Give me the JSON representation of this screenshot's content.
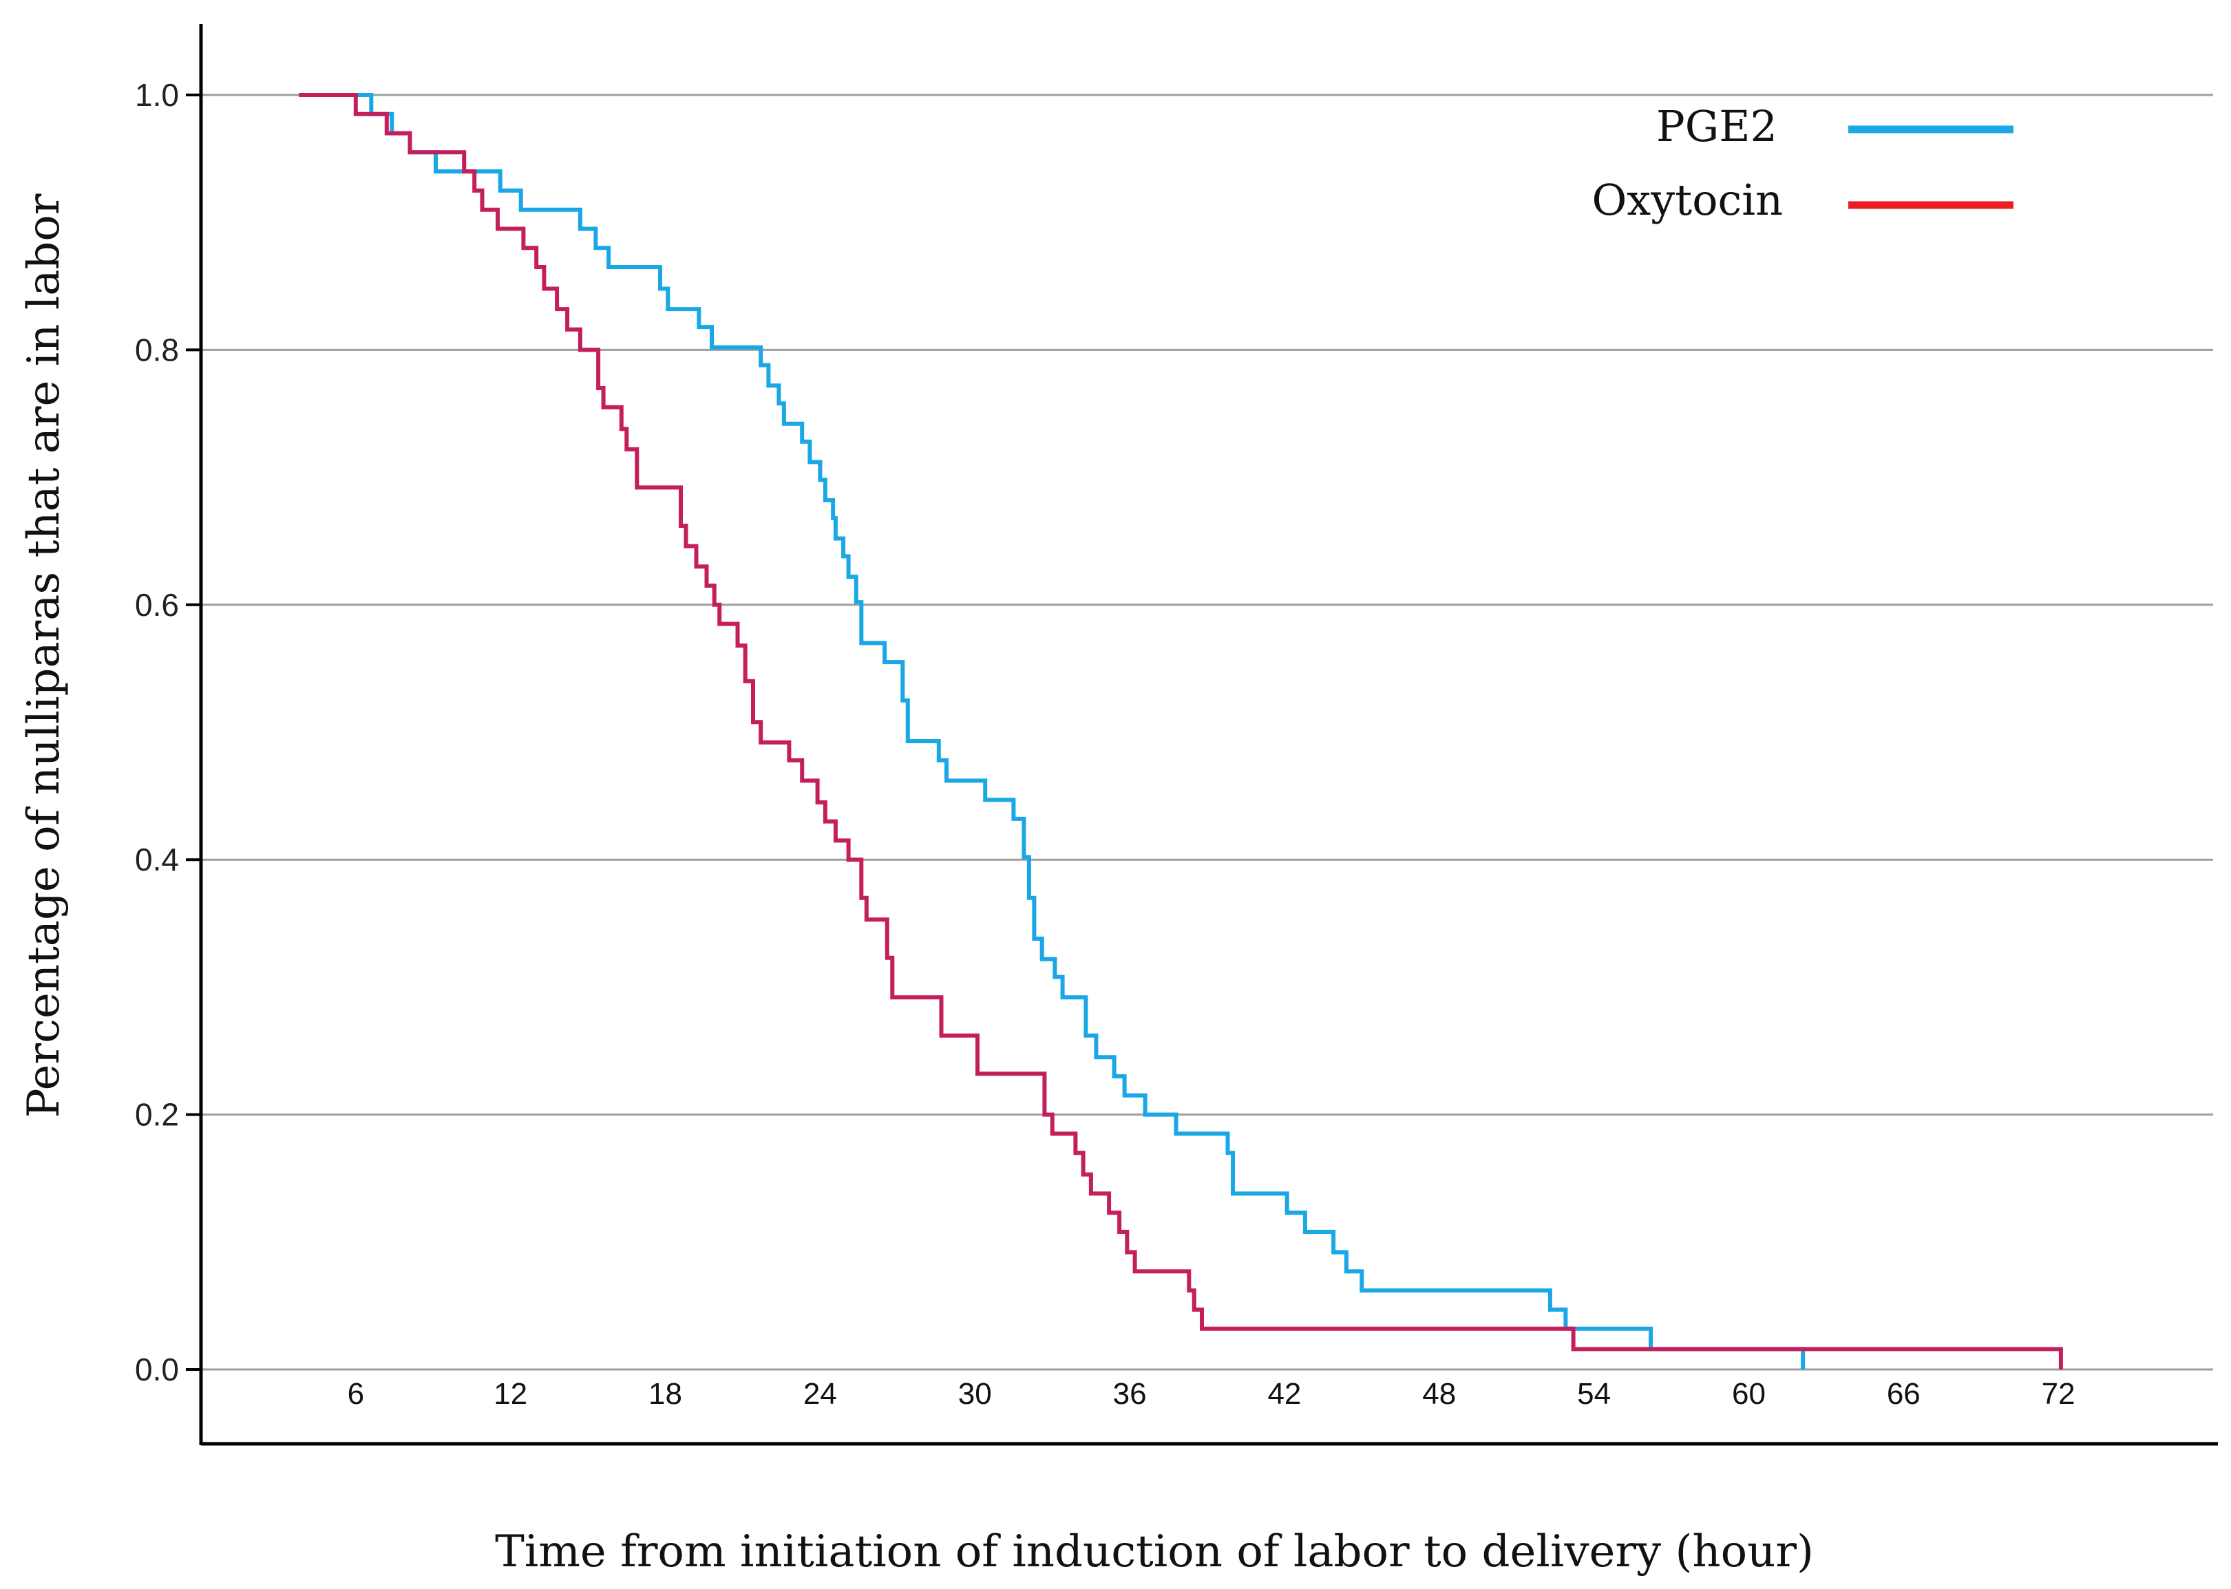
{
  "chart_data": {
    "type": "line",
    "subtype": "kaplan-meier-step",
    "title": "",
    "xlabel": "Time from initiation of induction of labor to delivery (hour)",
    "ylabel": "Percentage of nulliparas that are in labor",
    "xlim": [
      0,
      78
    ],
    "ylim": [
      0,
      1.0
    ],
    "grid": true,
    "legend_position": "top-right",
    "x_ticks": [
      {
        "label": "6",
        "value": 6
      },
      {
        "label": "12",
        "value": 12
      },
      {
        "label": "18",
        "value": 18
      },
      {
        "label": "24",
        "value": 24
      },
      {
        "label": "30",
        "value": 30
      },
      {
        "label": "36",
        "value": 36
      },
      {
        "label": "42",
        "value": 42
      },
      {
        "label": "48",
        "value": 48
      },
      {
        "label": "54",
        "value": 54
      },
      {
        "label": "60",
        "value": 60
      },
      {
        "label": "66",
        "value": 66
      },
      {
        "label": "72",
        "value": 72
      }
    ],
    "y_ticks": [
      {
        "label": "0.0",
        "value": 0.0
      },
      {
        "label": "0.2",
        "value": 0.2
      },
      {
        "label": "0.4",
        "value": 0.4
      },
      {
        "label": "0.6",
        "value": 0.6
      },
      {
        "label": "0.8",
        "value": 0.8
      },
      {
        "label": "1.0",
        "value": 1.0
      }
    ],
    "series": [
      {
        "name": "PGE2",
        "color": "#1aa7e6",
        "points": [
          [
            3.8,
            1.0
          ],
          [
            6.6,
            1.0
          ],
          [
            6.6,
            0.985
          ],
          [
            7.4,
            0.985
          ],
          [
            7.4,
            0.97
          ],
          [
            8.1,
            0.97
          ],
          [
            8.1,
            0.955
          ],
          [
            9.1,
            0.955
          ],
          [
            9.1,
            0.94
          ],
          [
            11.6,
            0.94
          ],
          [
            11.6,
            0.925
          ],
          [
            12.4,
            0.925
          ],
          [
            12.4,
            0.91
          ],
          [
            14.7,
            0.91
          ],
          [
            14.7,
            0.895
          ],
          [
            15.3,
            0.895
          ],
          [
            15.3,
            0.88
          ],
          [
            15.8,
            0.88
          ],
          [
            15.8,
            0.865
          ],
          [
            17.8,
            0.865
          ],
          [
            17.8,
            0.848
          ],
          [
            18.1,
            0.848
          ],
          [
            18.1,
            0.832
          ],
          [
            19.3,
            0.832
          ],
          [
            19.3,
            0.818
          ],
          [
            19.8,
            0.818
          ],
          [
            19.8,
            0.802
          ],
          [
            21.7,
            0.802
          ],
          [
            21.7,
            0.788
          ],
          [
            22.0,
            0.788
          ],
          [
            22.0,
            0.772
          ],
          [
            22.4,
            0.772
          ],
          [
            22.4,
            0.758
          ],
          [
            22.6,
            0.758
          ],
          [
            22.6,
            0.742
          ],
          [
            23.3,
            0.742
          ],
          [
            23.3,
            0.728
          ],
          [
            23.6,
            0.728
          ],
          [
            23.6,
            0.712
          ],
          [
            24.0,
            0.712
          ],
          [
            24.0,
            0.698
          ],
          [
            24.2,
            0.698
          ],
          [
            24.2,
            0.682
          ],
          [
            24.5,
            0.682
          ],
          [
            24.5,
            0.668
          ],
          [
            24.6,
            0.668
          ],
          [
            24.6,
            0.652
          ],
          [
            24.9,
            0.652
          ],
          [
            24.9,
            0.638
          ],
          [
            25.1,
            0.638
          ],
          [
            25.1,
            0.622
          ],
          [
            25.4,
            0.622
          ],
          [
            25.4,
            0.602
          ],
          [
            25.6,
            0.602
          ],
          [
            25.6,
            0.57
          ],
          [
            26.5,
            0.57
          ],
          [
            26.5,
            0.555
          ],
          [
            27.2,
            0.555
          ],
          [
            27.2,
            0.525
          ],
          [
            27.4,
            0.525
          ],
          [
            27.4,
            0.493
          ],
          [
            28.6,
            0.493
          ],
          [
            28.6,
            0.478
          ],
          [
            28.9,
            0.478
          ],
          [
            28.9,
            0.462
          ],
          [
            30.4,
            0.462
          ],
          [
            30.4,
            0.447
          ],
          [
            31.5,
            0.447
          ],
          [
            31.5,
            0.432
          ],
          [
            31.9,
            0.432
          ],
          [
            31.9,
            0.402
          ],
          [
            32.1,
            0.402
          ],
          [
            32.1,
            0.37
          ],
          [
            32.3,
            0.37
          ],
          [
            32.3,
            0.338
          ],
          [
            32.6,
            0.338
          ],
          [
            32.6,
            0.322
          ],
          [
            33.1,
            0.322
          ],
          [
            33.1,
            0.308
          ],
          [
            33.4,
            0.308
          ],
          [
            33.4,
            0.292
          ],
          [
            34.3,
            0.292
          ],
          [
            34.3,
            0.262
          ],
          [
            34.7,
            0.262
          ],
          [
            34.7,
            0.245
          ],
          [
            35.4,
            0.245
          ],
          [
            35.4,
            0.23
          ],
          [
            35.8,
            0.23
          ],
          [
            35.8,
            0.215
          ],
          [
            36.6,
            0.215
          ],
          [
            36.6,
            0.2
          ],
          [
            37.8,
            0.2
          ],
          [
            37.8,
            0.185
          ],
          [
            39.8,
            0.185
          ],
          [
            39.8,
            0.17
          ],
          [
            40.0,
            0.17
          ],
          [
            40.0,
            0.138
          ],
          [
            42.1,
            0.138
          ],
          [
            42.1,
            0.123
          ],
          [
            42.8,
            0.123
          ],
          [
            42.8,
            0.108
          ],
          [
            43.9,
            0.108
          ],
          [
            43.9,
            0.092
          ],
          [
            44.4,
            0.092
          ],
          [
            44.4,
            0.077
          ],
          [
            45.0,
            0.077
          ],
          [
            45.0,
            0.062
          ],
          [
            52.3,
            0.062
          ],
          [
            52.3,
            0.047
          ],
          [
            52.9,
            0.047
          ],
          [
            52.9,
            0.032
          ],
          [
            56.2,
            0.032
          ],
          [
            56.2,
            0.016
          ],
          [
            62.1,
            0.016
          ],
          [
            62.1,
            0.0
          ]
        ]
      },
      {
        "name": "Oxytocin",
        "color": "#c41f5c",
        "points": [
          [
            3.8,
            1.0
          ],
          [
            6.0,
            1.0
          ],
          [
            6.0,
            0.985
          ],
          [
            7.2,
            0.985
          ],
          [
            7.2,
            0.97
          ],
          [
            8.1,
            0.97
          ],
          [
            8.1,
            0.955
          ],
          [
            10.2,
            0.955
          ],
          [
            10.2,
            0.94
          ],
          [
            10.6,
            0.94
          ],
          [
            10.6,
            0.925
          ],
          [
            10.9,
            0.925
          ],
          [
            10.9,
            0.91
          ],
          [
            11.5,
            0.91
          ],
          [
            11.5,
            0.895
          ],
          [
            12.5,
            0.895
          ],
          [
            12.5,
            0.88
          ],
          [
            13.0,
            0.88
          ],
          [
            13.0,
            0.865
          ],
          [
            13.3,
            0.865
          ],
          [
            13.3,
            0.848
          ],
          [
            13.8,
            0.848
          ],
          [
            13.8,
            0.832
          ],
          [
            14.2,
            0.832
          ],
          [
            14.2,
            0.816
          ],
          [
            14.7,
            0.816
          ],
          [
            14.7,
            0.8
          ],
          [
            15.4,
            0.8
          ],
          [
            15.4,
            0.77
          ],
          [
            15.6,
            0.77
          ],
          [
            15.6,
            0.755
          ],
          [
            16.3,
            0.755
          ],
          [
            16.3,
            0.738
          ],
          [
            16.5,
            0.738
          ],
          [
            16.5,
            0.722
          ],
          [
            16.9,
            0.722
          ],
          [
            16.9,
            0.692
          ],
          [
            18.6,
            0.692
          ],
          [
            18.6,
            0.662
          ],
          [
            18.8,
            0.662
          ],
          [
            18.8,
            0.646
          ],
          [
            19.2,
            0.646
          ],
          [
            19.2,
            0.63
          ],
          [
            19.6,
            0.63
          ],
          [
            19.6,
            0.615
          ],
          [
            19.9,
            0.615
          ],
          [
            19.9,
            0.6
          ],
          [
            20.1,
            0.6
          ],
          [
            20.1,
            0.585
          ],
          [
            20.8,
            0.585
          ],
          [
            20.8,
            0.568
          ],
          [
            21.1,
            0.568
          ],
          [
            21.1,
            0.54
          ],
          [
            21.4,
            0.54
          ],
          [
            21.4,
            0.508
          ],
          [
            21.7,
            0.508
          ],
          [
            21.7,
            0.492
          ],
          [
            22.8,
            0.492
          ],
          [
            22.8,
            0.478
          ],
          [
            23.3,
            0.478
          ],
          [
            23.3,
            0.462
          ],
          [
            23.9,
            0.462
          ],
          [
            23.9,
            0.445
          ],
          [
            24.2,
            0.445
          ],
          [
            24.2,
            0.43
          ],
          [
            24.6,
            0.43
          ],
          [
            24.6,
            0.415
          ],
          [
            25.1,
            0.415
          ],
          [
            25.1,
            0.4
          ],
          [
            25.6,
            0.4
          ],
          [
            25.6,
            0.37
          ],
          [
            25.8,
            0.37
          ],
          [
            25.8,
            0.353
          ],
          [
            26.6,
            0.353
          ],
          [
            26.6,
            0.323
          ],
          [
            26.8,
            0.323
          ],
          [
            26.8,
            0.292
          ],
          [
            28.7,
            0.292
          ],
          [
            28.7,
            0.262
          ],
          [
            30.1,
            0.262
          ],
          [
            30.1,
            0.232
          ],
          [
            32.7,
            0.232
          ],
          [
            32.7,
            0.2
          ],
          [
            33.0,
            0.2
          ],
          [
            33.0,
            0.185
          ],
          [
            33.9,
            0.185
          ],
          [
            33.9,
            0.17
          ],
          [
            34.2,
            0.17
          ],
          [
            34.2,
            0.153
          ],
          [
            34.5,
            0.153
          ],
          [
            34.5,
            0.138
          ],
          [
            35.2,
            0.138
          ],
          [
            35.2,
            0.123
          ],
          [
            35.6,
            0.123
          ],
          [
            35.6,
            0.108
          ],
          [
            35.9,
            0.108
          ],
          [
            35.9,
            0.092
          ],
          [
            36.2,
            0.092
          ],
          [
            36.2,
            0.077
          ],
          [
            38.3,
            0.077
          ],
          [
            38.3,
            0.062
          ],
          [
            38.5,
            0.062
          ],
          [
            38.5,
            0.047
          ],
          [
            38.8,
            0.047
          ],
          [
            38.8,
            0.032
          ],
          [
            53.2,
            0.032
          ],
          [
            53.2,
            0.016
          ],
          [
            72.1,
            0.016
          ],
          [
            72.1,
            0.0
          ]
        ]
      }
    ]
  }
}
